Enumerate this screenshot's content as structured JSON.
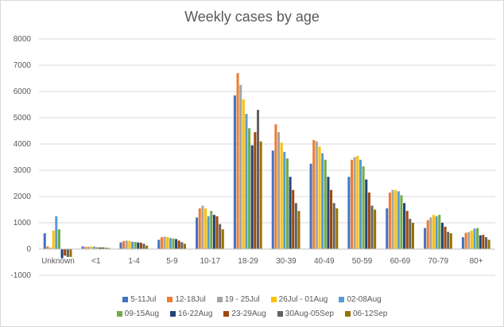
{
  "chart_data": {
    "type": "bar",
    "title": "Weekly cases by age",
    "xlabel": "",
    "ylabel": "",
    "ylim": [
      -1000,
      8000
    ],
    "yticks": [
      -1000,
      0,
      1000,
      2000,
      3000,
      4000,
      5000,
      6000,
      7000,
      8000
    ],
    "grid": true,
    "legend_position": "bottom",
    "categories": [
      "Unknown",
      "<1",
      "1-4",
      "5-9",
      "10-17",
      "18-29",
      "30-39",
      "40-49",
      "50-59",
      "60-69",
      "70-79",
      "80+"
    ],
    "series": [
      {
        "name": "5-11Jul",
        "color": "#4472c4",
        "values": [
          600,
          100,
          250,
          350,
          1200,
          5850,
          3750,
          3250,
          2750,
          1550,
          800,
          450
        ]
      },
      {
        "name": "12-18Jul",
        "color": "#ed7d31",
        "values": [
          100,
          80,
          300,
          450,
          1550,
          6700,
          4750,
          4150,
          3400,
          2150,
          1100,
          620
        ]
      },
      {
        "name": "19 - 25Jul",
        "color": "#a5a5a5",
        "values": [
          50,
          90,
          320,
          470,
          1650,
          6250,
          4450,
          4100,
          3500,
          2250,
          1200,
          650
        ]
      },
      {
        "name": "26Jul - 01Aug",
        "color": "#ffc000",
        "values": [
          700,
          100,
          310,
          460,
          1550,
          5700,
          4050,
          3900,
          3550,
          2250,
          1300,
          700
        ]
      },
      {
        "name": "02-08Aug",
        "color": "#5b9bd5",
        "values": [
          1250,
          90,
          280,
          420,
          1250,
          5150,
          3700,
          3650,
          3400,
          2200,
          1250,
          780
        ]
      },
      {
        "name": "09-15Aug",
        "color": "#70ad47",
        "values": [
          750,
          70,
          270,
          400,
          1450,
          4600,
          3450,
          3400,
          3150,
          2050,
          1300,
          800
        ]
      },
      {
        "name": "16-22Aug",
        "color": "#264478",
        "values": [
          -350,
          60,
          250,
          380,
          1300,
          3950,
          2750,
          2750,
          2650,
          1750,
          1000,
          520
        ]
      },
      {
        "name": "23-29Aug",
        "color": "#9e480e",
        "values": [
          -250,
          60,
          240,
          320,
          1250,
          4450,
          2250,
          2250,
          2150,
          1450,
          850,
          540
        ]
      },
      {
        "name": "30Aug-05Sep",
        "color": "#636363",
        "values": [
          -300,
          50,
          200,
          260,
          950,
          5300,
          1750,
          1750,
          1650,
          1150,
          650,
          450
        ]
      },
      {
        "name": "06-12Sep",
        "color": "#997300",
        "values": [
          -300,
          40,
          130,
          200,
          750,
          4100,
          1450,
          1550,
          1500,
          1000,
          600,
          350
        ]
      }
    ]
  }
}
